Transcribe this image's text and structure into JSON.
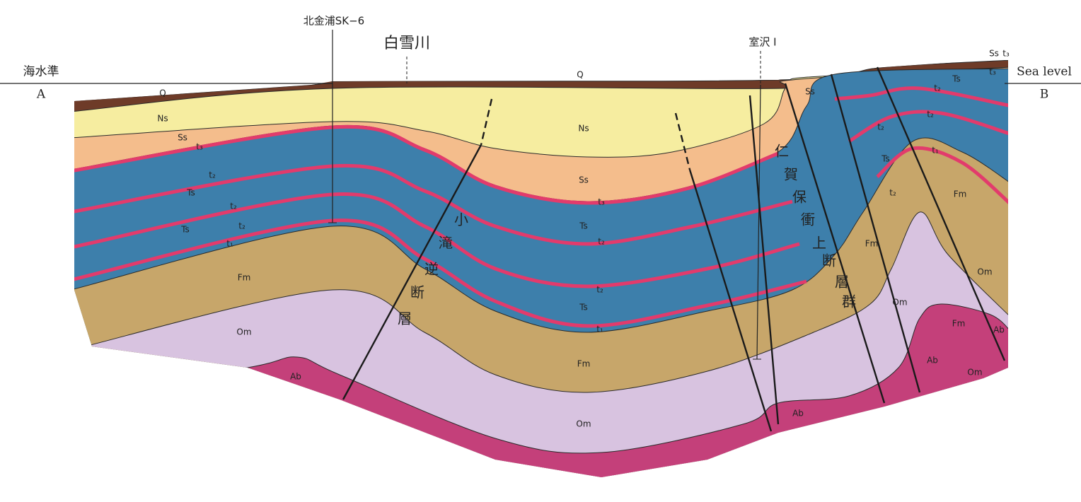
{
  "header": {
    "left_ja": "海水準",
    "left_point": "A",
    "right_en": "Sea level",
    "right_point": "B"
  },
  "wells": [
    {
      "label": "北金浦SK−6"
    },
    {
      "label": "白雪川"
    },
    {
      "label": "室沢 I"
    }
  ],
  "faults": [
    {
      "chars": [
        "小",
        "滝",
        "逆",
        "断",
        "層"
      ]
    },
    {
      "chars": [
        "仁",
        "賀",
        "保",
        "衝",
        "上",
        "断",
        "層",
        "群"
      ]
    }
  ],
  "unit_labels": [
    {
      "text": "Q"
    },
    {
      "text": "Q"
    },
    {
      "text": "Ns"
    },
    {
      "text": "Ns"
    },
    {
      "text": "Ss"
    },
    {
      "text": "Ss"
    },
    {
      "text": "Ss"
    },
    {
      "text": "Ss"
    },
    {
      "text": "Ts"
    },
    {
      "text": "Ts"
    },
    {
      "text": "Ts"
    },
    {
      "text": "Ts"
    },
    {
      "text": "Ts"
    },
    {
      "text": "Ts"
    },
    {
      "text": "Fm"
    },
    {
      "text": "Fm"
    },
    {
      "text": "Fm"
    },
    {
      "text": "Fm"
    },
    {
      "text": "Fm"
    },
    {
      "text": "Om"
    },
    {
      "text": "Om"
    },
    {
      "text": "Om"
    },
    {
      "text": "Om"
    },
    {
      "text": "Om"
    },
    {
      "text": "Ab"
    },
    {
      "text": "Ab"
    },
    {
      "text": "Ab"
    },
    {
      "text": "Ab"
    },
    {
      "text": "t₃"
    },
    {
      "text": "t₃"
    },
    {
      "text": "t₃"
    },
    {
      "text": "t₃"
    },
    {
      "text": "t₂"
    },
    {
      "text": "t₂"
    },
    {
      "text": "t₂"
    },
    {
      "text": "t₂"
    },
    {
      "text": "t₂"
    },
    {
      "text": "t₂"
    },
    {
      "text": "t₂"
    },
    {
      "text": "t₂"
    },
    {
      "text": "t₂"
    },
    {
      "text": "t₁"
    },
    {
      "text": "t₁"
    },
    {
      "text": "t₁"
    }
  ]
}
